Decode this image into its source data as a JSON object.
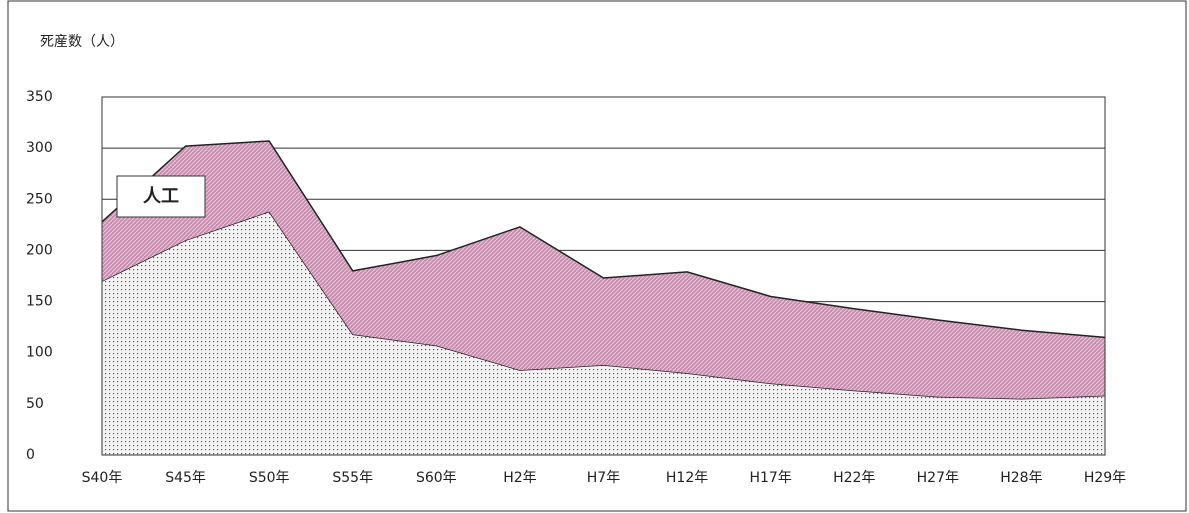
{
  "chart_data": {
    "type": "stacked_area",
    "y_axis_label": "死産数（人）",
    "categories": [
      "S40年",
      "S45年",
      "S50年",
      "S55年",
      "S60年",
      "H2年",
      "H7年",
      "H12年",
      "H17年",
      "H22年",
      "H27年",
      "H28年",
      "H29年"
    ],
    "series": [
      {
        "color": "#c8c8c8",
        "values": [
          170,
          210,
          238,
          118,
          107,
          83,
          88,
          80,
          70,
          63,
          57,
          55,
          58
        ]
      },
      {
        "name": "人工",
        "color": "#c890b0",
        "values": [
          58,
          92,
          69,
          62,
          88,
          140,
          85,
          99,
          85,
          80,
          75,
          67,
          57
        ]
      }
    ],
    "ylim": [
      0,
      350
    ],
    "yticks": [
      0,
      50,
      100,
      150,
      200,
      250,
      300,
      350
    ],
    "grid": true
  }
}
